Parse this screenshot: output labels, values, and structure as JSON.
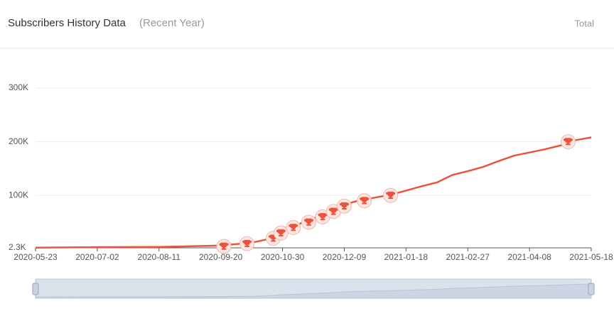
{
  "chart_data": {
    "type": "line",
    "title": "Subscribers History Data",
    "subtitle": "(Recent Year)",
    "mode": "Total",
    "x": [
      "2020-05-23",
      "2020-07-02",
      "2020-08-11",
      "2020-09-20",
      "2020-10-10",
      "2020-10-20",
      "2020-10-30",
      "2020-11-09",
      "2020-11-19",
      "2020-11-29",
      "2020-12-09",
      "2020-12-19",
      "2020-12-29",
      "2021-01-08",
      "2021-01-18",
      "2021-01-28",
      "2021-02-07",
      "2021-02-17",
      "2021-02-27",
      "2021-03-09",
      "2021-03-19",
      "2021-03-29",
      "2021-04-08",
      "2021-04-18",
      "2021-04-28",
      "2021-05-08",
      "2021-05-18"
    ],
    "series": [
      {
        "name": "Subscribers",
        "color": "#e8553e",
        "values": [
          2600,
          3600,
          3900,
          6600,
          11800,
          18000,
          38000,
          46000,
          57000,
          67000,
          83000,
          91000,
          96000,
          101000,
          109000,
          117000,
          124000,
          138000,
          145000,
          153000,
          164000,
          174000,
          180000,
          186000,
          193000,
          203000,
          208000
        ]
      }
    ],
    "milestones": {
      "x": [
        "2020-09-22",
        "2020-10-07",
        "2020-10-24",
        "2020-10-29",
        "2020-11-06",
        "2020-11-16",
        "2020-11-25",
        "2020-12-02",
        "2020-12-09",
        "2020-12-22",
        "2021-01-08",
        "2021-05-03"
      ],
      "values": [
        5000,
        10000,
        20000,
        30000,
        40000,
        50000,
        60000,
        70000,
        80000,
        90000,
        100000,
        200000
      ]
    },
    "xlim": [
      "2020-05-23",
      "2021-05-18"
    ],
    "xticks": [
      "2020-05-23",
      "2020-07-02",
      "2020-08-11",
      "2020-09-20",
      "2020-10-30",
      "2020-12-09",
      "2021-01-18",
      "2021-02-27",
      "2021-04-08",
      "2021-05-18"
    ],
    "ylim": [
      2300,
      300000
    ],
    "yticks": [
      {
        "value": 2300,
        "label": "2.3K"
      },
      {
        "value": 100000,
        "label": "100K"
      },
      {
        "value": 200000,
        "label": "200K"
      },
      {
        "value": 300000,
        "label": "300K"
      }
    ],
    "grid": true
  }
}
